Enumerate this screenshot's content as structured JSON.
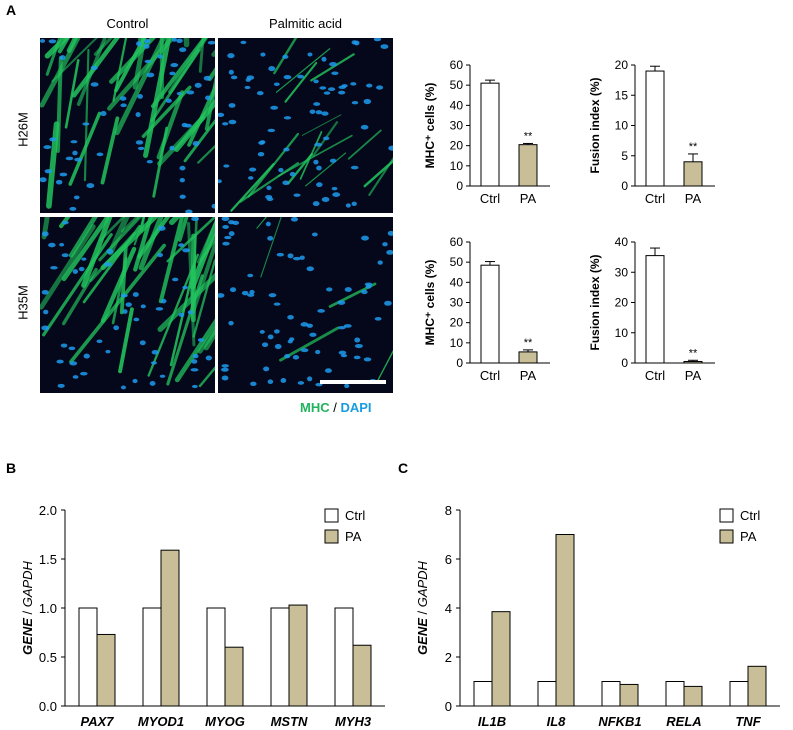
{
  "panel_letters": {
    "a": "A",
    "b": "B",
    "c": "C"
  },
  "micrographs": {
    "columns": [
      "Control",
      "Palmitic acid"
    ],
    "rows": [
      "H26M",
      "H35M"
    ],
    "stain": {
      "mhc": "MHC",
      "sep": " / ",
      "dapi": "DAPI"
    },
    "colors": {
      "mhc": "#22c55e",
      "dapi": "#1d9bf0",
      "background": "#05071a"
    }
  },
  "colors": {
    "ctrl": "#ffffff",
    "pa": "#c8bf98",
    "axis": "#000000"
  },
  "chart_data": [
    {
      "id": "a1",
      "type": "bar",
      "cell_line": "H26M",
      "categories": [
        "Ctrl",
        "PA"
      ],
      "values": [
        51,
        20.5
      ],
      "errors": [
        1.5,
        0.6
      ],
      "ylabel": "MHC⁺ cells (%)",
      "ylim": [
        0,
        60
      ],
      "yticks": [
        "0",
        "10",
        "20",
        "30",
        "40",
        "50",
        "60"
      ],
      "significance": [
        "",
        "**"
      ]
    },
    {
      "id": "a2",
      "type": "bar",
      "cell_line": "H26M",
      "categories": [
        "Ctrl",
        "PA"
      ],
      "values": [
        19,
        4
      ],
      "errors": [
        0.8,
        1.3
      ],
      "ylabel": "Fusion index (%)",
      "ylim": [
        0,
        20
      ],
      "yticks": [
        "0",
        "5",
        "10",
        "15",
        "20"
      ],
      "significance": [
        "",
        "**"
      ]
    },
    {
      "id": "a3",
      "type": "bar",
      "cell_line": "H35M",
      "categories": [
        "Ctrl",
        "PA"
      ],
      "values": [
        48.5,
        5.5
      ],
      "errors": [
        1.8,
        1.0
      ],
      "ylabel": "MHC⁺ cells (%)",
      "ylim": [
        0,
        60
      ],
      "yticks": [
        "0",
        "10",
        "20",
        "30",
        "40",
        "50",
        "60"
      ],
      "significance": [
        "",
        "**"
      ]
    },
    {
      "id": "a4",
      "type": "bar",
      "cell_line": "H35M",
      "categories": [
        "Ctrl",
        "PA"
      ],
      "values": [
        35.5,
        0.5
      ],
      "errors": [
        2.5,
        0.4
      ],
      "ylabel": "Fusion index (%)",
      "ylim": [
        0,
        40
      ],
      "yticks": [
        "0",
        "10",
        "20",
        "30",
        "40"
      ],
      "significance": [
        "",
        "**"
      ]
    },
    {
      "id": "b",
      "type": "bar",
      "categories": [
        "PAX7",
        "MYOD1",
        "MYOG",
        "MSTN",
        "MYH3"
      ],
      "series": [
        {
          "name": "Ctrl",
          "values": [
            1.0,
            1.0,
            1.0,
            1.0,
            1.0
          ]
        },
        {
          "name": "PA",
          "values": [
            0.73,
            1.59,
            0.6,
            1.03,
            0.62
          ]
        }
      ],
      "ylabel_gene": "GENE",
      "ylabel_sep": " / ",
      "ylabel_ref": "GAPDH",
      "ylim": [
        0,
        2
      ],
      "yticks": [
        "0.0",
        "0.5",
        "1.0",
        "1.5",
        "2.0"
      ],
      "legend_position": "top-right"
    },
    {
      "id": "c",
      "type": "bar",
      "categories": [
        "IL1B",
        "IL8",
        "NFKB1",
        "RELA",
        "TNF"
      ],
      "series": [
        {
          "name": "Ctrl",
          "values": [
            1.0,
            1.0,
            1.0,
            1.0,
            1.0
          ]
        },
        {
          "name": "PA",
          "values": [
            3.85,
            7.0,
            0.88,
            0.8,
            1.62
          ]
        }
      ],
      "ylabel_gene": "GENE",
      "ylabel_sep": " / ",
      "ylabel_ref": "GAPDH",
      "ylim": [
        0,
        8
      ],
      "yticks": [
        "0",
        "2",
        "4",
        "6",
        "8"
      ],
      "legend_position": "top-right"
    }
  ]
}
